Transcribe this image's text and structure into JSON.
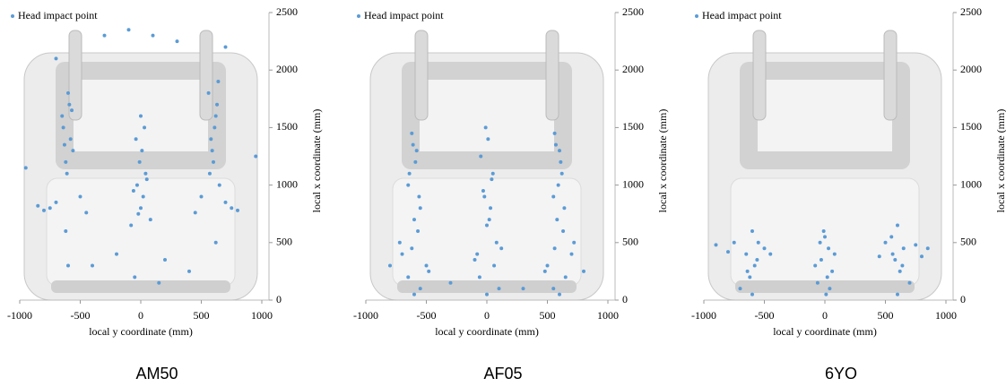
{
  "chart_data": [
    {
      "type": "scatter",
      "label": "AM50",
      "xlabel": "local y coordinate (mm)",
      "ylabel": "local x coordinate (mm)",
      "xlim": [
        -1000,
        1000
      ],
      "xticks": [
        -1000,
        -500,
        0,
        500,
        1000
      ],
      "ylim": [
        0,
        2500
      ],
      "yticks": [
        0,
        500,
        1000,
        1500,
        2000,
        2500
      ],
      "series": [
        {
          "name": "Head impact point",
          "color": "#5b9bd5",
          "x": [
            -620,
            -580,
            -650,
            -600,
            -560,
            -640,
            -590,
            -610,
            -570,
            -630,
            -700,
            -750,
            -800,
            -850,
            -500,
            -450,
            -620,
            -600,
            0,
            20,
            -30,
            40,
            -10,
            10,
            -40,
            30,
            0,
            -20,
            50,
            -60,
            80,
            -80,
            600,
            580,
            620,
            560,
            640,
            590,
            610,
            570,
            630,
            650,
            700,
            750,
            800,
            500,
            450,
            620,
            -300,
            300,
            -100,
            100,
            -200,
            200,
            -50,
            150,
            -700,
            700,
            -400,
            400,
            950,
            -950
          ],
          "values": [
            1200,
            1400,
            1600,
            1800,
            1300,
            1500,
            1700,
            1100,
            1650,
            1350,
            850,
            800,
            780,
            820,
            900,
            760,
            600,
            300,
            800,
            900,
            1000,
            1100,
            1200,
            1300,
            1400,
            1500,
            1600,
            750,
            1050,
            950,
            700,
            650,
            1200,
            1400,
            1600,
            1800,
            1900,
            1300,
            1500,
            1100,
            1700,
            1000,
            850,
            800,
            780,
            900,
            760,
            500,
            2300,
            2250,
            2350,
            2300,
            400,
            350,
            200,
            150,
            2100,
            2200,
            300,
            250,
            1250,
            1150
          ]
        }
      ]
    },
    {
      "type": "scatter",
      "label": "AF05",
      "xlabel": "local y coordinate (mm)",
      "ylabel": "local x coordinate (mm)",
      "xlim": [
        -1000,
        1000
      ],
      "xticks": [
        -1000,
        -500,
        0,
        500,
        1000
      ],
      "ylim": [
        0,
        2500
      ],
      "yticks": [
        0,
        500,
        1000,
        1500,
        2000,
        2500
      ],
      "series": [
        {
          "name": "Head impact point",
          "color": "#5b9bd5",
          "x": [
            -600,
            -560,
            -640,
            -580,
            -620,
            -550,
            -650,
            -590,
            -610,
            -570,
            -700,
            -500,
            -650,
            -550,
            -600,
            -720,
            -480,
            -620,
            0,
            30,
            -30,
            50,
            -50,
            10,
            -10,
            20,
            -20,
            40,
            80,
            -80,
            60,
            -60,
            100,
            0,
            120,
            -100,
            580,
            550,
            620,
            600,
            560,
            640,
            590,
            610,
            570,
            630,
            700,
            500,
            650,
            550,
            600,
            720,
            480,
            560,
            -800,
            800,
            -300,
            300
          ],
          "values": [
            700,
            900,
            1100,
            1300,
            1450,
            800,
            1000,
            1200,
            1350,
            600,
            400,
            300,
            200,
            100,
            50,
            500,
            250,
            450,
            650,
            800,
            950,
            1100,
            1250,
            1400,
            1500,
            700,
            900,
            1050,
            500,
            400,
            300,
            200,
            100,
            50,
            450,
            350,
            700,
            900,
            1100,
            1300,
            1450,
            800,
            1000,
            1200,
            1350,
            600,
            400,
            300,
            200,
            100,
            50,
            500,
            250,
            450,
            300,
            250,
            150,
            100
          ]
        }
      ]
    },
    {
      "type": "scatter",
      "label": "6YO",
      "xlabel": "local y coordinate (mm)",
      "ylabel": "local x coordinate (mm)",
      "xlim": [
        -1000,
        1000
      ],
      "xticks": [
        -1000,
        -500,
        0,
        500,
        1000
      ],
      "ylim": [
        0,
        2500
      ],
      "yticks": [
        0,
        500,
        1000,
        1500,
        2000,
        2500
      ],
      "series": [
        {
          "name": "Head impact point",
          "color": "#5b9bd5",
          "x": [
            -600,
            -550,
            -650,
            -580,
            -620,
            -700,
            -500,
            -560,
            -640,
            -600,
            -750,
            -450,
            0,
            30,
            -30,
            60,
            -60,
            10,
            -10,
            80,
            -80,
            20,
            40,
            -40,
            600,
            550,
            650,
            580,
            620,
            700,
            500,
            560,
            640,
            600,
            750,
            450,
            -900,
            -800,
            800,
            850
          ],
          "values": [
            600,
            500,
            400,
            300,
            200,
            100,
            450,
            350,
            250,
            50,
            500,
            400,
            550,
            450,
            350,
            250,
            150,
            50,
            600,
            400,
            300,
            200,
            100,
            500,
            650,
            550,
            450,
            350,
            250,
            150,
            500,
            400,
            300,
            50,
            480,
            380,
            480,
            420,
            380,
            450
          ]
        }
      ]
    }
  ]
}
